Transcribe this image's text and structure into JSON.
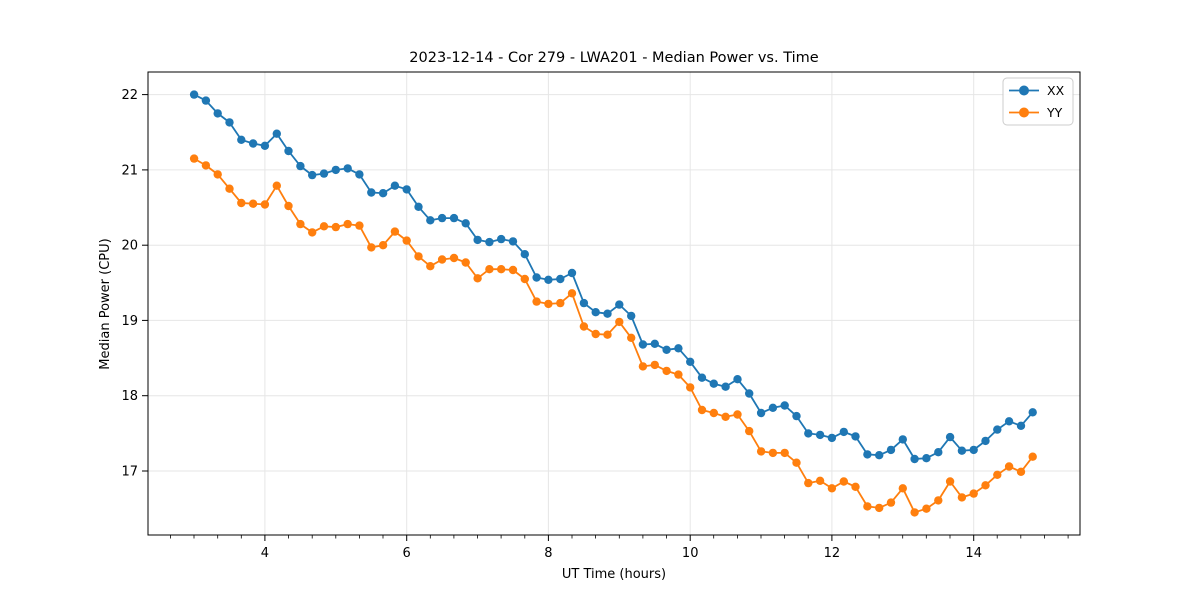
{
  "figure": {
    "background_color": "#ffffff",
    "grid_color": "#e6e6e6",
    "spine_color": "#000000",
    "text_color": "#000000"
  },
  "chart_data": {
    "type": "line",
    "title": "2023-12-14 - Cor 279 - LWA201 - Median Power vs. Time",
    "xlabel": "UT Time (hours)",
    "ylabel": "Median Power (CPU)",
    "xlim": [
      2.35,
      15.5
    ],
    "ylim": [
      16.15,
      22.3
    ],
    "xticks": [
      4,
      6,
      8,
      10,
      12,
      14
    ],
    "yticks": [
      17,
      18,
      19,
      20,
      21,
      22
    ],
    "minor_xtick_step": 0.3333,
    "grid": true,
    "legend_position": "upper right",
    "marker": "circle",
    "x": [
      3.0,
      3.167,
      3.333,
      3.5,
      3.667,
      3.833,
      4.0,
      4.167,
      4.333,
      4.5,
      4.667,
      4.833,
      5.0,
      5.167,
      5.333,
      5.5,
      5.667,
      5.833,
      6.0,
      6.167,
      6.333,
      6.5,
      6.667,
      6.833,
      7.0,
      7.167,
      7.333,
      7.5,
      7.667,
      7.833,
      8.0,
      8.167,
      8.333,
      8.5,
      8.667,
      8.833,
      9.0,
      9.167,
      9.333,
      9.5,
      9.667,
      9.833,
      10.0,
      10.167,
      10.333,
      10.5,
      10.667,
      10.833,
      11.0,
      11.167,
      11.333,
      11.5,
      11.667,
      11.833,
      12.0,
      12.167,
      12.333,
      12.5,
      12.667,
      12.833,
      13.0,
      13.167,
      13.333,
      13.5,
      13.667,
      13.833,
      14.0,
      14.167,
      14.333,
      14.5,
      14.667,
      14.833
    ],
    "series": [
      {
        "name": "XX",
        "color": "#1f77b4",
        "values": [
          22.0,
          21.92,
          21.75,
          21.63,
          21.4,
          21.35,
          21.32,
          21.48,
          21.25,
          21.05,
          20.93,
          20.95,
          21.0,
          21.02,
          20.94,
          20.7,
          20.69,
          20.79,
          20.74,
          20.51,
          20.33,
          20.36,
          20.36,
          20.29,
          20.07,
          20.04,
          20.08,
          20.05,
          19.88,
          19.57,
          19.54,
          19.55,
          19.63,
          19.23,
          19.11,
          19.09,
          19.21,
          19.06,
          18.68,
          18.69,
          18.61,
          18.63,
          18.45,
          18.24,
          18.16,
          18.12,
          18.22,
          18.03,
          17.77,
          17.84,
          17.87,
          17.73,
          17.5,
          17.48,
          17.44,
          17.52,
          17.46,
          17.22,
          17.21,
          17.28,
          17.42,
          17.16,
          17.17,
          17.25,
          17.45,
          17.27,
          17.28,
          17.4,
          17.55,
          17.66,
          17.6,
          17.78
        ]
      },
      {
        "name": "YY",
        "color": "#ff7f0e",
        "values": [
          21.15,
          21.06,
          20.94,
          20.75,
          20.56,
          20.55,
          20.54,
          20.79,
          20.52,
          20.28,
          20.17,
          20.25,
          20.24,
          20.28,
          20.26,
          19.97,
          20.0,
          20.18,
          20.06,
          19.85,
          19.72,
          19.81,
          19.83,
          19.77,
          19.56,
          19.68,
          19.68,
          19.67,
          19.55,
          19.25,
          19.22,
          19.23,
          19.36,
          18.92,
          18.82,
          18.81,
          18.98,
          18.77,
          18.39,
          18.41,
          18.33,
          18.28,
          18.11,
          17.81,
          17.77,
          17.72,
          17.75,
          17.53,
          17.26,
          17.24,
          17.24,
          17.11,
          16.84,
          16.87,
          16.77,
          16.86,
          16.79,
          16.53,
          16.51,
          16.58,
          16.77,
          16.45,
          16.5,
          16.61,
          16.86,
          16.65,
          16.7,
          16.81,
          16.95,
          17.06,
          16.99,
          17.19
        ]
      }
    ]
  }
}
